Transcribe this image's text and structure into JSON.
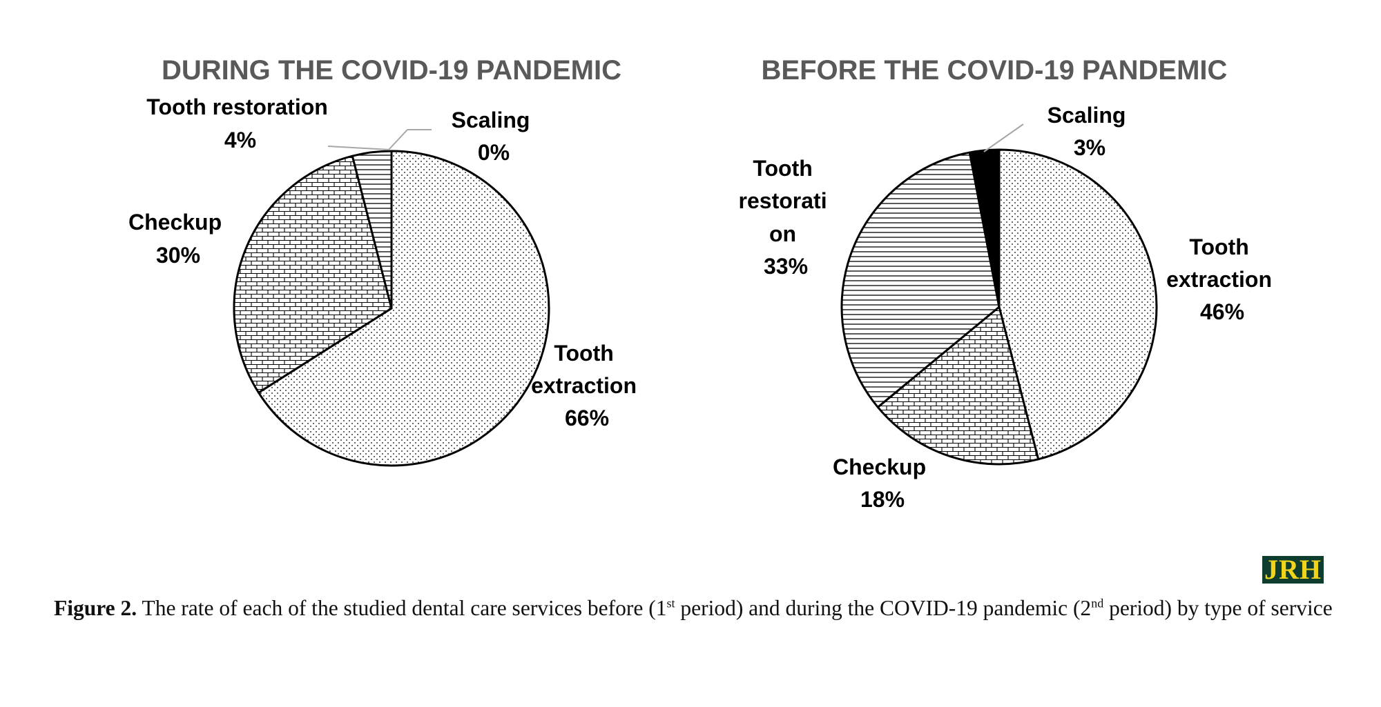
{
  "chart_data": [
    {
      "type": "pie",
      "title": "DURING THE COVID-19 PANDEMIC",
      "slices": [
        {
          "label": [
            "Tooth",
            "extraction"
          ],
          "value": 66,
          "display": "66%",
          "pattern": "dots"
        },
        {
          "label": [
            "Checkup"
          ],
          "value": 30,
          "display": "30%",
          "pattern": "bricks"
        },
        {
          "label": [
            "Tooth restoration"
          ],
          "value": 4,
          "display": "4%",
          "pattern": "hlines"
        },
        {
          "label": [
            "Scaling"
          ],
          "value": 0,
          "display": "0%",
          "pattern": "solid"
        }
      ]
    },
    {
      "type": "pie",
      "title": "BEFORE THE COVID-19 PANDEMIC",
      "slices": [
        {
          "label": [
            "Tooth",
            "extraction"
          ],
          "value": 46,
          "display": "46%",
          "pattern": "dots"
        },
        {
          "label": [
            "Checkup"
          ],
          "value": 18,
          "display": "18%",
          "pattern": "bricks"
        },
        {
          "label": [
            "Tooth",
            "restorati",
            "on"
          ],
          "value": 33,
          "display": "33%",
          "pattern": "hlines"
        },
        {
          "label": [
            "Scaling"
          ],
          "value": 3,
          "display": "3%",
          "pattern": "solid"
        }
      ]
    }
  ],
  "caption": {
    "label": "Figure 2.",
    "text_1": " The rate of each of the studied dental care services before (1",
    "sup_1": "st",
    "text_2": " period) and during the COVID-19 pandemic (2",
    "sup_2": "nd",
    "text_3": " period) by type of service"
  },
  "logo": {
    "text": "JRH"
  },
  "colors": {
    "outline": "#000000",
    "leader": "#a6a6a6",
    "title": "#595959",
    "logo_bg": "#0e3d2f",
    "logo_text": "#f2d51a"
  }
}
